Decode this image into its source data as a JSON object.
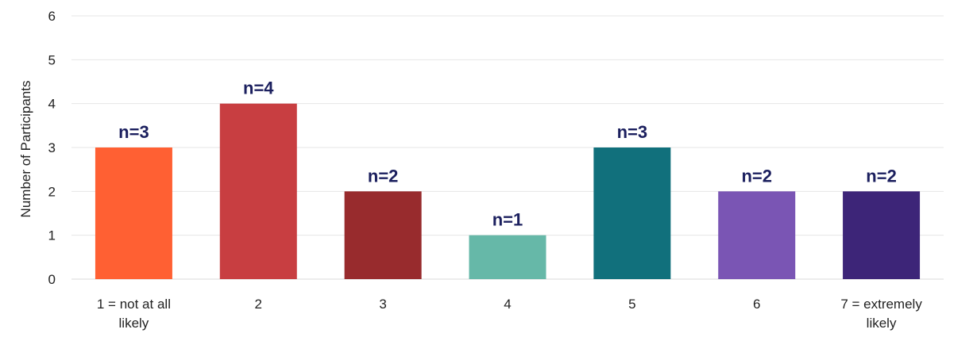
{
  "chart_data": {
    "type": "bar",
    "categories": [
      [
        "1 = not at all",
        "likely"
      ],
      [
        "2"
      ],
      [
        "3"
      ],
      [
        "4"
      ],
      [
        "5"
      ],
      [
        "6"
      ],
      [
        "7 = extremely",
        "likely"
      ]
    ],
    "values": [
      3,
      4,
      2,
      1,
      3,
      2,
      2
    ],
    "data_labels": [
      "n=3",
      "n=4",
      "n=2",
      "n=1",
      "n=3",
      "n=2",
      "n=2"
    ],
    "colors": [
      "#ff6033",
      "#c83e41",
      "#982b2d",
      "#66b8a8",
      "#11707c",
      "#7a55b4",
      "#3d2578"
    ],
    "ylabel": "Number of Participants",
    "ylim": [
      0,
      6
    ],
    "yticks": [
      0,
      1,
      2,
      3,
      4,
      5,
      6
    ],
    "grid": true,
    "label_color": "#1b1f5e"
  }
}
